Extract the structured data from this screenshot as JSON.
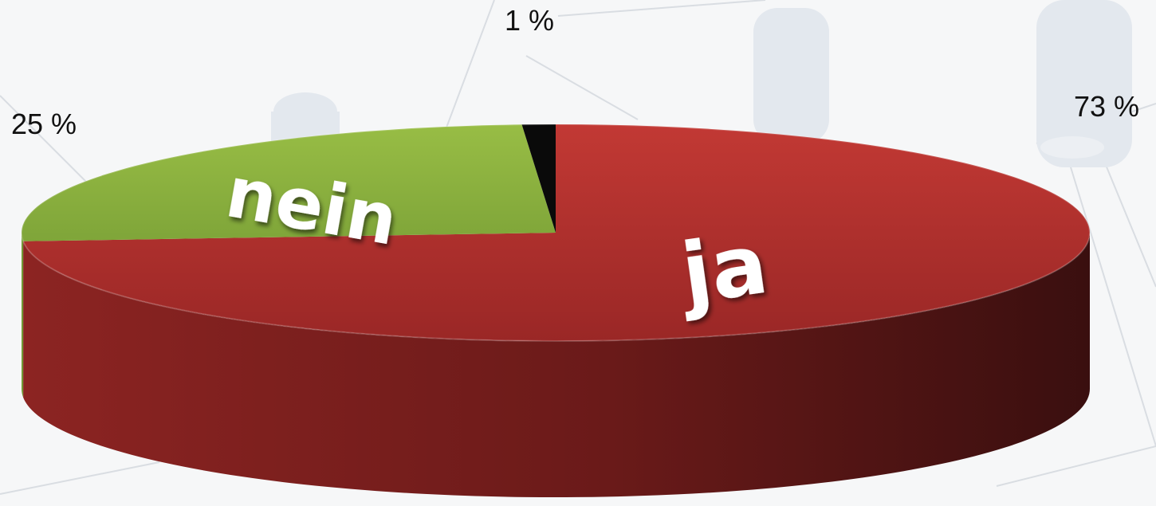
{
  "colors": {
    "ja_top": "#b8322f",
    "ja_side": "#6f1b1a",
    "nein_top": "#8eb53c",
    "nein_side": "#6f9130",
    "other": "#0a0a0a",
    "background": "#f6f7f8"
  },
  "chart_data": {
    "type": "pie",
    "style": "3d",
    "slices": [
      {
        "label": "ja",
        "value": 73,
        "value_label": "73 %",
        "color": "#b8322f"
      },
      {
        "label": "nein",
        "value": 25,
        "value_label": "25 %",
        "color": "#8eb53c"
      },
      {
        "label": "",
        "value": 1,
        "value_label": "1 %",
        "color": "#0a0a0a"
      }
    ]
  }
}
